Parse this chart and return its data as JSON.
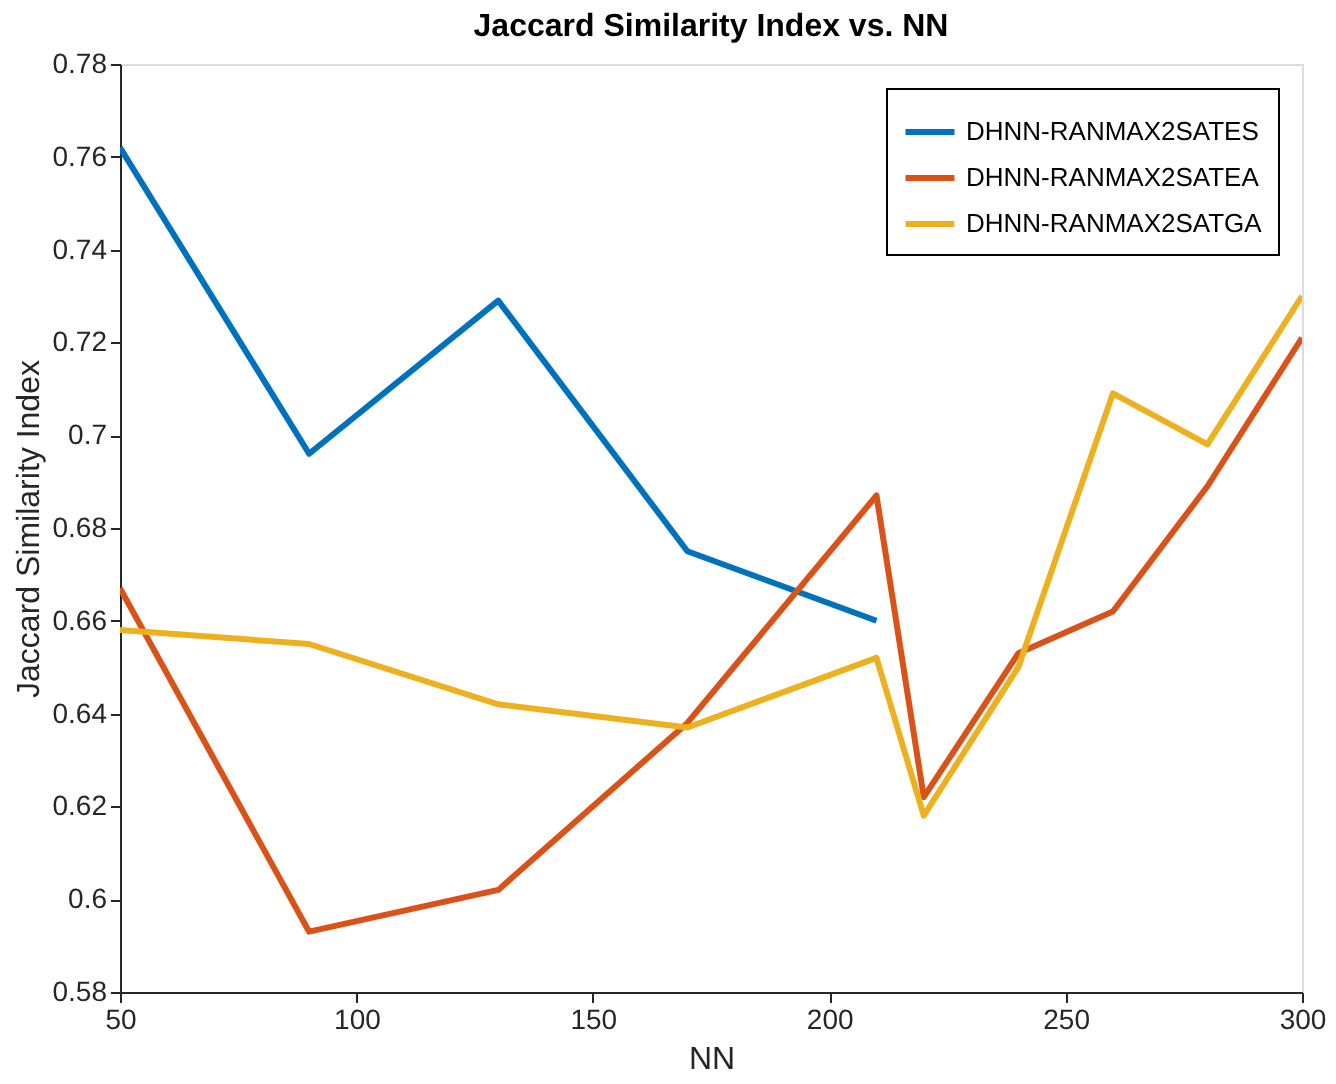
{
  "chart_data": {
    "type": "line",
    "title": "Jaccard Similarity Index vs. NN",
    "xlabel": "NN",
    "ylabel": "Jaccard Similarity Index",
    "x": [
      50,
      90,
      130,
      170,
      210,
      220,
      240,
      260,
      280,
      300
    ],
    "series": [
      {
        "name": "DHNN-RANMAX2SATES",
        "color": "#0072bd",
        "x": [
          50,
          90,
          130,
          170,
          210
        ],
        "values": [
          0.762,
          0.696,
          0.729,
          0.675,
          0.66
        ]
      },
      {
        "name": "DHNN-RANMAX2SATEA",
        "color": "#d95319",
        "values": [
          0.667,
          0.593,
          0.602,
          0.638,
          0.687,
          0.622,
          0.653,
          0.662,
          0.689,
          0.721
        ]
      },
      {
        "name": "DHNN-RANMAX2SATGA",
        "color": "#edb120",
        "values": [
          0.658,
          0.655,
          0.642,
          0.637,
          0.652,
          0.618,
          0.65,
          0.709,
          0.698,
          0.73
        ]
      }
    ],
    "xlim": [
      50,
      300
    ],
    "xticks": [
      50,
      100,
      150,
      200,
      250,
      300
    ],
    "ylim": [
      0.58,
      0.78
    ],
    "yticks": [
      0.58,
      0.6,
      0.62,
      0.64,
      0.66,
      0.68,
      0.7,
      0.72,
      0.74,
      0.76,
      0.78
    ],
    "grid": false,
    "legend": "top right",
    "marker": "none",
    "line_style": "solid"
  }
}
